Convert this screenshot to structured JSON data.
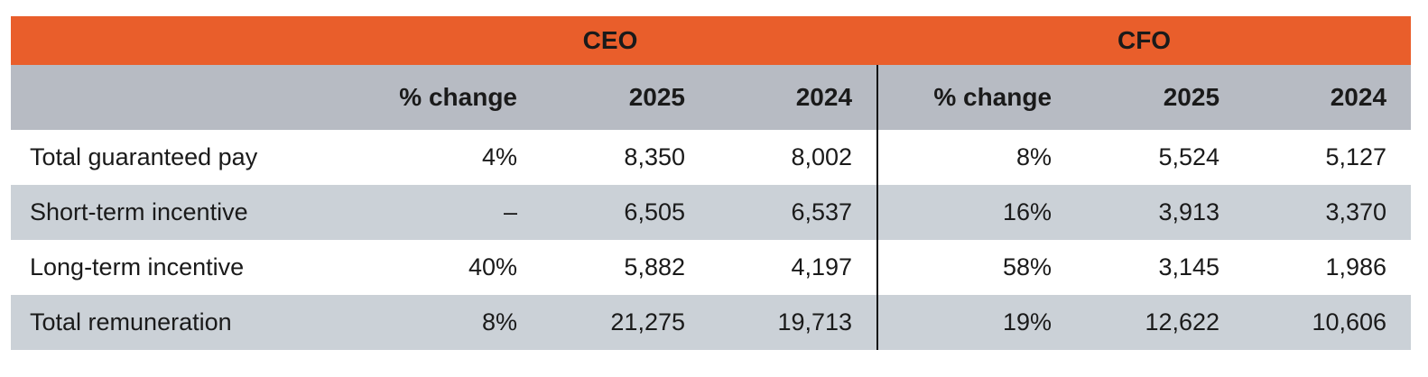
{
  "table": {
    "group_headers": {
      "ceo": "CEO",
      "cfo": "CFO"
    },
    "column_headers": {
      "change": "% change",
      "y2025": "2025",
      "y2024": "2024"
    },
    "rows": [
      {
        "label": "Total guaranteed pay",
        "ceo": {
          "change": "4%",
          "y2025": "8,350",
          "y2024": "8,002"
        },
        "cfo": {
          "change": "8%",
          "y2025": "5,524",
          "y2024": "5,127"
        }
      },
      {
        "label": "Short-term incentive",
        "ceo": {
          "change": "–",
          "y2025": "6,505",
          "y2024": "6,537"
        },
        "cfo": {
          "change": "16%",
          "y2025": "3,913",
          "y2024": "3,370"
        }
      },
      {
        "label": "Long-term incentive",
        "ceo": {
          "change": "40%",
          "y2025": "5,882",
          "y2024": "4,197"
        },
        "cfo": {
          "change": "58%",
          "y2025": "3,145",
          "y2024": "1,986"
        }
      },
      {
        "label": "Total remuneration",
        "ceo": {
          "change": "8%",
          "y2025": "21,275",
          "y2024": "19,713"
        },
        "cfo": {
          "change": "19%",
          "y2025": "12,622",
          "y2024": "10,606"
        }
      }
    ]
  },
  "colors": {
    "header_orange": "#E95E2B",
    "subheader_gray": "#B7BBC3",
    "row_stripe_gray": "#CBD1D7",
    "divider_black": "#111111",
    "text": "#1A1A1A"
  }
}
